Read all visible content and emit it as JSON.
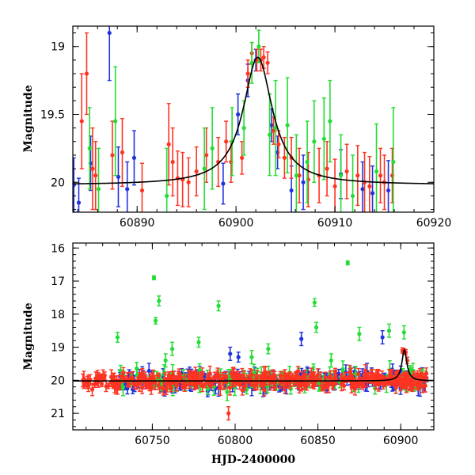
{
  "chart_data": [
    {
      "type": "scatter",
      "title": "",
      "xlabel": "",
      "ylabel": "Magnitude",
      "xlim": [
        60883.5,
        60920
      ],
      "ylim": [
        20.22,
        18.85
      ],
      "y_inverted": true,
      "xticks": [
        60890,
        60900,
        60910,
        60920
      ],
      "yticks": [
        19,
        19.5,
        20
      ],
      "grid": false,
      "legend": "none",
      "series": [
        {
          "color": "#2233dd",
          "points": [
            {
              "x": 60883.6,
              "y": 20.02,
              "err": 0.2
            },
            {
              "x": 60884.1,
              "y": 20.15,
              "err": 0.18
            },
            {
              "x": 60885.3,
              "y": 19.86,
              "err": 0.2
            },
            {
              "x": 60887.2,
              "y": 18.9,
              "err": 0.35
            },
            {
              "x": 60888.1,
              "y": 19.96,
              "err": 0.22
            },
            {
              "x": 60889.0,
              "y": 20.05,
              "err": 0.2
            },
            {
              "x": 60889.7,
              "y": 19.82,
              "err": 0.2
            },
            {
              "x": 60898.7,
              "y": 20.01,
              "err": 0.15
            },
            {
              "x": 60900.2,
              "y": 19.5,
              "err": 0.15
            },
            {
              "x": 60901.2,
              "y": 19.25,
              "err": 0.12
            },
            {
              "x": 60902.0,
              "y": 19.1,
              "err": 0.08
            },
            {
              "x": 60903.6,
              "y": 19.58,
              "err": 0.12
            },
            {
              "x": 60904.2,
              "y": 19.78,
              "err": 0.12
            },
            {
              "x": 60905.6,
              "y": 20.06,
              "err": 0.18
            },
            {
              "x": 60906.8,
              "y": 20.0,
              "err": 0.2
            },
            {
              "x": 60910.6,
              "y": 19.94,
              "err": 0.18
            },
            {
              "x": 60912.8,
              "y": 20.05,
              "err": 0.2
            },
            {
              "x": 60913.8,
              "y": 20.08,
              "err": 0.2
            },
            {
              "x": 60915.4,
              "y": 20.06,
              "err": 0.22
            }
          ]
        },
        {
          "color": "#ff3322",
          "points": [
            {
              "x": 60884.4,
              "y": 19.55,
              "err": 0.35
            },
            {
              "x": 60884.9,
              "y": 19.2,
              "err": 0.3
            },
            {
              "x": 60885.5,
              "y": 19.9,
              "err": 0.3
            },
            {
              "x": 60885.8,
              "y": 19.95,
              "err": 0.25
            },
            {
              "x": 60887.5,
              "y": 19.8,
              "err": 0.25
            },
            {
              "x": 60888.5,
              "y": 19.78,
              "err": 0.25
            },
            {
              "x": 60890.5,
              "y": 20.06,
              "err": 0.2
            },
            {
              "x": 60893.2,
              "y": 19.72,
              "err": 0.3
            },
            {
              "x": 60893.6,
              "y": 19.85,
              "err": 0.25
            },
            {
              "x": 60894.1,
              "y": 19.97,
              "err": 0.2
            },
            {
              "x": 60894.6,
              "y": 19.98,
              "err": 0.2
            },
            {
              "x": 60895.2,
              "y": 20.0,
              "err": 0.18
            },
            {
              "x": 60896.0,
              "y": 19.92,
              "err": 0.18
            },
            {
              "x": 60897.0,
              "y": 19.8,
              "err": 0.2
            },
            {
              "x": 60898.2,
              "y": 19.85,
              "err": 0.18
            },
            {
              "x": 60899.0,
              "y": 19.7,
              "err": 0.15
            },
            {
              "x": 60899.5,
              "y": 19.85,
              "err": 0.15
            },
            {
              "x": 60900.6,
              "y": 19.82,
              "err": 0.12
            },
            {
              "x": 60901.2,
              "y": 19.2,
              "err": 0.1
            },
            {
              "x": 60901.6,
              "y": 19.05,
              "err": 0.08
            },
            {
              "x": 60902.1,
              "y": 19.1,
              "err": 0.08
            },
            {
              "x": 60902.5,
              "y": 19.1,
              "err": 0.08
            },
            {
              "x": 60902.8,
              "y": 19.08,
              "err": 0.08
            },
            {
              "x": 60903.2,
              "y": 19.12,
              "err": 0.08
            },
            {
              "x": 60903.8,
              "y": 19.62,
              "err": 0.1
            },
            {
              "x": 60904.3,
              "y": 19.72,
              "err": 0.1
            },
            {
              "x": 60904.9,
              "y": 19.82,
              "err": 0.15
            },
            {
              "x": 60905.6,
              "y": 19.82,
              "err": 0.15
            },
            {
              "x": 60906.4,
              "y": 19.95,
              "err": 0.2
            },
            {
              "x": 60907.3,
              "y": 19.98,
              "err": 0.2
            },
            {
              "x": 60908.4,
              "y": 19.95,
              "err": 0.2
            },
            {
              "x": 60909.2,
              "y": 19.9,
              "err": 0.2
            },
            {
              "x": 60910.0,
              "y": 20.03,
              "err": 0.2
            },
            {
              "x": 60911.2,
              "y": 19.92,
              "err": 0.2
            },
            {
              "x": 60912.3,
              "y": 19.95,
              "err": 0.22
            },
            {
              "x": 60913.0,
              "y": 20.0,
              "err": 0.22
            },
            {
              "x": 60913.5,
              "y": 20.03,
              "err": 0.22
            },
            {
              "x": 60914.6,
              "y": 19.95,
              "err": 0.2
            },
            {
              "x": 60915.0,
              "y": 20.0,
              "err": 0.2
            },
            {
              "x": 60915.8,
              "y": 19.95,
              "err": 0.2
            }
          ]
        },
        {
          "color": "#22dd33",
          "points": [
            {
              "x": 60885.2,
              "y": 19.75,
              "err": 0.3
            },
            {
              "x": 60886.1,
              "y": 20.05,
              "err": 0.3
            },
            {
              "x": 60887.8,
              "y": 19.55,
              "err": 0.4
            },
            {
              "x": 60893.0,
              "y": 20.1,
              "err": 0.35
            },
            {
              "x": 60896.8,
              "y": 19.9,
              "err": 0.3
            },
            {
              "x": 60897.6,
              "y": 19.75,
              "err": 0.3
            },
            {
              "x": 60899.6,
              "y": 19.7,
              "err": 0.25
            },
            {
              "x": 60900.8,
              "y": 19.6,
              "err": 0.2
            },
            {
              "x": 60901.6,
              "y": 19.12,
              "err": 0.15
            },
            {
              "x": 60902.3,
              "y": 19.0,
              "err": 0.12
            },
            {
              "x": 60903.4,
              "y": 19.65,
              "err": 0.3
            },
            {
              "x": 60904.0,
              "y": 19.6,
              "err": 0.35
            },
            {
              "x": 60905.2,
              "y": 19.58,
              "err": 0.35
            },
            {
              "x": 60906.1,
              "y": 19.95,
              "err": 0.3
            },
            {
              "x": 60907.2,
              "y": 19.85,
              "err": 0.3
            },
            {
              "x": 60907.9,
              "y": 19.7,
              "err": 0.3
            },
            {
              "x": 60908.9,
              "y": 19.68,
              "err": 0.3
            },
            {
              "x": 60909.5,
              "y": 19.55,
              "err": 0.3
            },
            {
              "x": 60910.6,
              "y": 19.95,
              "err": 0.3
            },
            {
              "x": 60911.8,
              "y": 20.1,
              "err": 0.3
            },
            {
              "x": 60914.2,
              "y": 19.92,
              "err": 0.35
            },
            {
              "x": 60915.9,
              "y": 19.85,
              "err": 0.4
            }
          ]
        }
      ],
      "model_curve": {
        "peak_x": 60902.2,
        "peak_y": 19.08,
        "base_y": 20.02,
        "width": 1.8
      }
    },
    {
      "type": "scatter",
      "title": "",
      "xlabel": "HJD-2400000",
      "ylabel": "Magnitude",
      "xlim": [
        60702,
        60920
      ],
      "ylim": [
        21.5,
        15.85
      ],
      "y_inverted": true,
      "xticks": [
        60750,
        60800,
        60850,
        60900
      ],
      "yticks": [
        16,
        17,
        18,
        19,
        20,
        21
      ],
      "grid": false,
      "legend": "none",
      "dense_region": {
        "baseline": 20.0,
        "segments": [
          {
            "color": "#2233dd",
            "x_range": [
              60730,
              60916
            ],
            "count": 220,
            "scatter": 0.22,
            "err": 0.18
          },
          {
            "color": "#22dd33",
            "x_range": [
              60730,
              60916
            ],
            "count": 120,
            "scatter": 0.25,
            "err": 0.2
          },
          {
            "color": "#ff3322",
            "x_range": [
              60708,
              60916
            ],
            "count": 380,
            "scatter": 0.2,
            "err": 0.15
          }
        ]
      },
      "series": [
        {
          "color": "#22dd33",
          "points": [
            {
              "x": 60729,
              "y": 18.7,
              "err": 0.15
            },
            {
              "x": 60751,
              "y": 16.9,
              "err": 0.06
            },
            {
              "x": 60752,
              "y": 18.2,
              "err": 0.1
            },
            {
              "x": 60754,
              "y": 17.6,
              "err": 0.15
            },
            {
              "x": 60758,
              "y": 19.4,
              "err": 0.2
            },
            {
              "x": 60762,
              "y": 19.05,
              "err": 0.2
            },
            {
              "x": 60778,
              "y": 18.85,
              "err": 0.15
            },
            {
              "x": 60790,
              "y": 17.75,
              "err": 0.15
            },
            {
              "x": 60810,
              "y": 19.3,
              "err": 0.2
            },
            {
              "x": 60820,
              "y": 19.05,
              "err": 0.15
            },
            {
              "x": 60848,
              "y": 17.65,
              "err": 0.12
            },
            {
              "x": 60849,
              "y": 18.4,
              "err": 0.15
            },
            {
              "x": 60858,
              "y": 19.4,
              "err": 0.2
            },
            {
              "x": 60868,
              "y": 16.45,
              "err": 0.06
            },
            {
              "x": 60875,
              "y": 18.6,
              "err": 0.2
            },
            {
              "x": 60893,
              "y": 18.5,
              "err": 0.2
            },
            {
              "x": 60902,
              "y": 18.55,
              "err": 0.2
            }
          ]
        },
        {
          "color": "#2233dd",
          "points": [
            {
              "x": 60840,
              "y": 18.75,
              "err": 0.2
            },
            {
              "x": 60797,
              "y": 19.2,
              "err": 0.2
            },
            {
              "x": 60802,
              "y": 19.3,
              "err": 0.15
            },
            {
              "x": 60889,
              "y": 18.7,
              "err": 0.2
            }
          ]
        },
        {
          "color": "#ff3322",
          "points": [
            {
              "x": 60796,
              "y": 21.0,
              "err": 0.2
            },
            {
              "x": 60901,
              "y": 19.1,
              "err": 0.08
            },
            {
              "x": 60902,
              "y": 19.12,
              "err": 0.08
            },
            {
              "x": 60903,
              "y": 19.15,
              "err": 0.08
            },
            {
              "x": 60904,
              "y": 19.4,
              "err": 0.1
            }
          ]
        }
      ],
      "model_curve": {
        "peak_x": 60902.2,
        "peak_y": 19.08,
        "base_y": 20.02,
        "width": 1.8
      }
    }
  ]
}
